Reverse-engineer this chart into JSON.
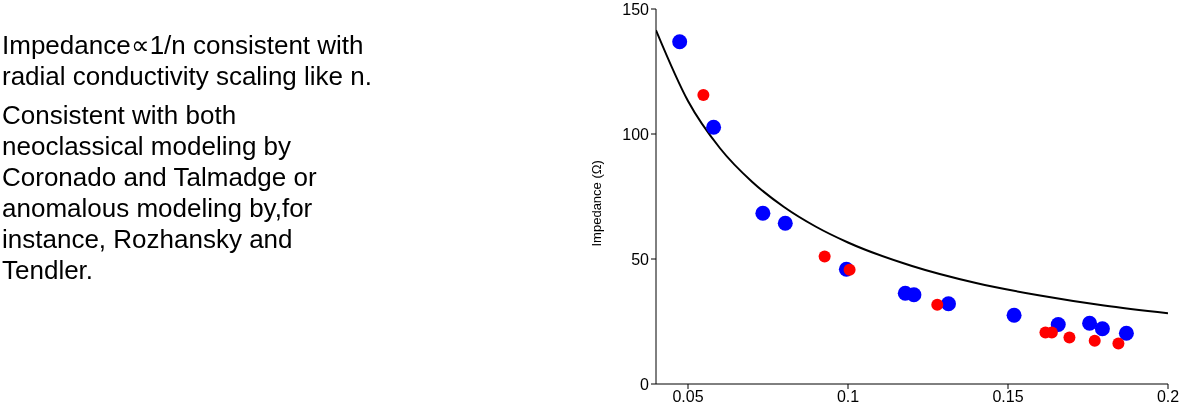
{
  "chart_data": {
    "type": "scatter",
    "ylabel": "Impedance (Ω)",
    "xlim": [
      0.04,
      0.2
    ],
    "xticks": [
      0.05,
      0.1,
      0.15,
      0.2
    ],
    "ylim": [
      0,
      150
    ],
    "yticks": [
      0,
      50,
      100,
      150
    ],
    "grid": false,
    "legend": false,
    "annotations": [
      "Impedance∝1/n consistent with radial conductivity scaling like n.",
      "Consistent with both neoclassical modeling by Coronado and Talmadge or anomalous modeling by,for instance, Rozhansky and Tendler."
    ],
    "series": [
      {
        "color": "#0000ff",
        "marker": "circle",
        "x": [
          0.0474,
          0.058,
          0.0734,
          0.0804,
          0.0995,
          0.1179,
          0.1206,
          0.1314,
          0.1519,
          0.1657,
          0.1755,
          0.1795,
          0.187
        ],
        "values": [
          136.9,
          102.7,
          68.3,
          64.3,
          45.9,
          36.3,
          35.7,
          32.1,
          27.5,
          23.8,
          24.3,
          22.1,
          20.3
        ]
      },
      {
        "color": "#ff0000",
        "marker": "circle",
        "x": [
          0.0548,
          0.0927,
          0.1005,
          0.1279,
          0.1617,
          0.1637,
          0.1692,
          0.1771,
          0.1845
        ],
        "values": [
          115.6,
          51.0,
          45.7,
          31.7,
          20.6,
          20.6,
          18.6,
          17.3,
          16.2
        ]
      },
      {
        "type": "line",
        "color": "#000000",
        "line_style": "solid",
        "x": [
          0.04,
          0.05,
          0.06,
          0.07,
          0.08,
          0.09,
          0.1,
          0.12,
          0.14,
          0.16,
          0.18,
          0.2
        ],
        "values": [
          141.5,
          113.2,
          94.3,
          80.9,
          70.8,
          62.9,
          56.6,
          47.2,
          40.4,
          35.4,
          31.4,
          28.3
        ]
      }
    ]
  }
}
